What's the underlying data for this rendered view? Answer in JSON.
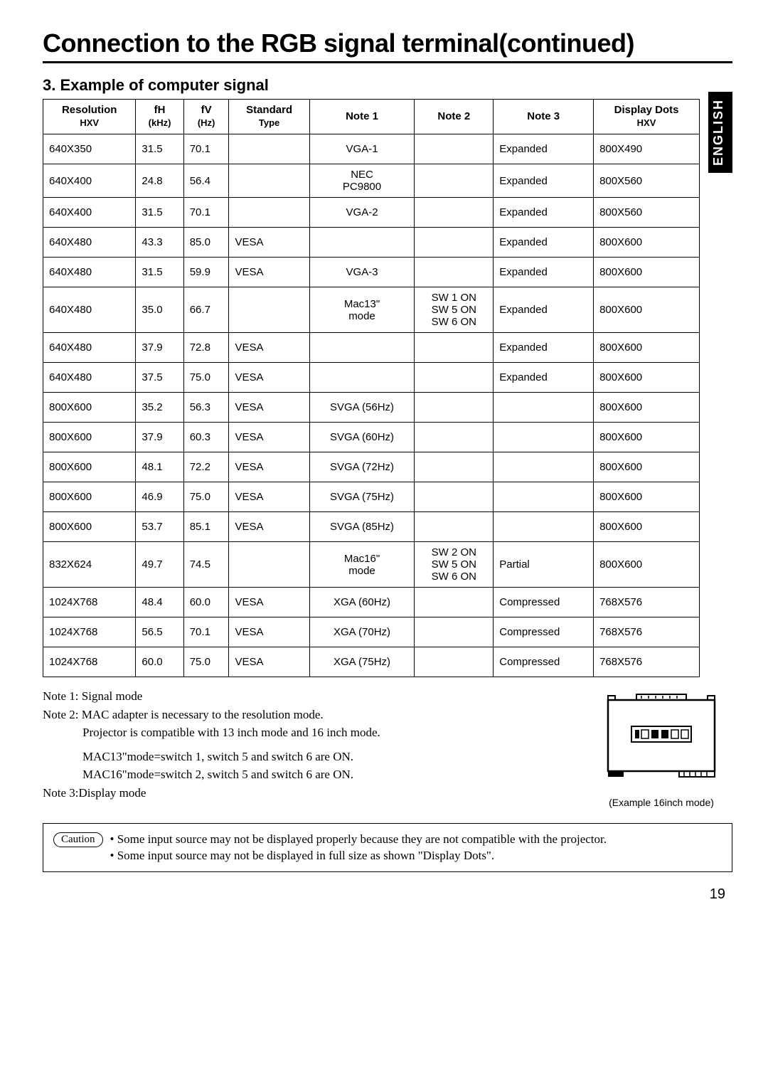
{
  "page_title": "Connection to the RGB signal terminal(continued)",
  "section_title": "3. Example of computer signal",
  "language_tab": "ENGLISH",
  "table": {
    "headers": [
      {
        "line1": "Resolution",
        "line2": "HXV"
      },
      {
        "line1": "fH",
        "line2": "(kHz)"
      },
      {
        "line1": "fV",
        "line2": "(Hz)"
      },
      {
        "line1": "Standard",
        "line2": "Type"
      },
      {
        "line1": "Note 1",
        "line2": ""
      },
      {
        "line1": "Note 2",
        "line2": ""
      },
      {
        "line1": "Note 3",
        "line2": ""
      },
      {
        "line1": "Display Dots",
        "line2": "HXV"
      }
    ],
    "rows": [
      {
        "res": "640X350",
        "fh": "31.5",
        "fv": "70.1",
        "std": "",
        "n1": "VGA-1",
        "n2": "",
        "n3": "Expanded",
        "dd": "800X490"
      },
      {
        "res": "640X400",
        "fh": "24.8",
        "fv": "56.4",
        "std": "",
        "n1": "NEC\nPC9800",
        "n2": "",
        "n3": "Expanded",
        "dd": "800X560"
      },
      {
        "res": "640X400",
        "fh": "31.5",
        "fv": "70.1",
        "std": "",
        "n1": "VGA-2",
        "n2": "",
        "n3": "Expanded",
        "dd": "800X560"
      },
      {
        "res": "640X480",
        "fh": "43.3",
        "fv": "85.0",
        "std": "VESA",
        "n1": "",
        "n2": "",
        "n3": "Expanded",
        "dd": "800X600"
      },
      {
        "res": "640X480",
        "fh": "31.5",
        "fv": "59.9",
        "std": "VESA",
        "n1": "VGA-3",
        "n2": "",
        "n3": "Expanded",
        "dd": "800X600"
      },
      {
        "res": "640X480",
        "fh": "35.0",
        "fv": "66.7",
        "std": "",
        "n1": "Mac13\"\nmode",
        "n2": "SW 1 ON\nSW 5 ON\nSW 6 ON",
        "n3": "Expanded",
        "dd": "800X600"
      },
      {
        "res": "640X480",
        "fh": "37.9",
        "fv": "72.8",
        "std": "VESA",
        "n1": "",
        "n2": "",
        "n3": "Expanded",
        "dd": "800X600"
      },
      {
        "res": "640X480",
        "fh": "37.5",
        "fv": "75.0",
        "std": "VESA",
        "n1": "",
        "n2": "",
        "n3": "Expanded",
        "dd": "800X600"
      },
      {
        "res": "800X600",
        "fh": "35.2",
        "fv": "56.3",
        "std": "VESA",
        "n1": "SVGA (56Hz)",
        "n2": "",
        "n3": "",
        "dd": "800X600"
      },
      {
        "res": "800X600",
        "fh": "37.9",
        "fv": "60.3",
        "std": "VESA",
        "n1": "SVGA (60Hz)",
        "n2": "",
        "n3": "",
        "dd": "800X600"
      },
      {
        "res": "800X600",
        "fh": "48.1",
        "fv": "72.2",
        "std": "VESA",
        "n1": "SVGA (72Hz)",
        "n2": "",
        "n3": "",
        "dd": "800X600"
      },
      {
        "res": "800X600",
        "fh": "46.9",
        "fv": "75.0",
        "std": "VESA",
        "n1": "SVGA (75Hz)",
        "n2": "",
        "n3": "",
        "dd": "800X600"
      },
      {
        "res": "800X600",
        "fh": "53.7",
        "fv": "85.1",
        "std": "VESA",
        "n1": "SVGA (85Hz)",
        "n2": "",
        "n3": "",
        "dd": "800X600"
      },
      {
        "res": "832X624",
        "fh": "49.7",
        "fv": "74.5",
        "std": "",
        "n1": "Mac16\"\nmode",
        "n2": "SW 2 ON\nSW 5 ON\nSW 6 ON",
        "n3": "Partial",
        "dd": "800X600"
      },
      {
        "res": "1024X768",
        "fh": "48.4",
        "fv": "60.0",
        "std": "VESA",
        "n1": "XGA (60Hz)",
        "n2": "",
        "n3": "Compressed",
        "dd": "768X576"
      },
      {
        "res": "1024X768",
        "fh": "56.5",
        "fv": "70.1",
        "std": "VESA",
        "n1": "XGA (70Hz)",
        "n2": "",
        "n3": "Compressed",
        "dd": "768X576"
      },
      {
        "res": "1024X768",
        "fh": "60.0",
        "fv": "75.0",
        "std": "VESA",
        "n1": "XGA (75Hz)",
        "n2": "",
        "n3": "Compressed",
        "dd": "768X576"
      }
    ]
  },
  "notes": {
    "n1": "Note 1: Signal mode",
    "n2": "Note 2: MAC adapter is necessary to the resolution mode.",
    "n2b": "Projector is compatible with 13 inch mode and 16 inch mode.",
    "n2c": "MAC13\"mode=switch 1, switch 5 and switch 6 are ON.",
    "n2d": "MAC16\"mode=switch 2, switch 5 and switch 6 are ON.",
    "n3": "Note 3:Display mode"
  },
  "adapter_caption": "(Example 16inch mode)",
  "caution": {
    "label": "Caution",
    "b1": "• Some input source may not be displayed properly because they are not compatible with the projector.",
    "b2": "• Some input source may not be displayed in full size as shown \"Display Dots\"."
  },
  "page_number": "19",
  "colors": {
    "border": "#000000",
    "bg": "#ffffff",
    "tab_bg": "#000000",
    "tab_fg": "#ffffff"
  }
}
